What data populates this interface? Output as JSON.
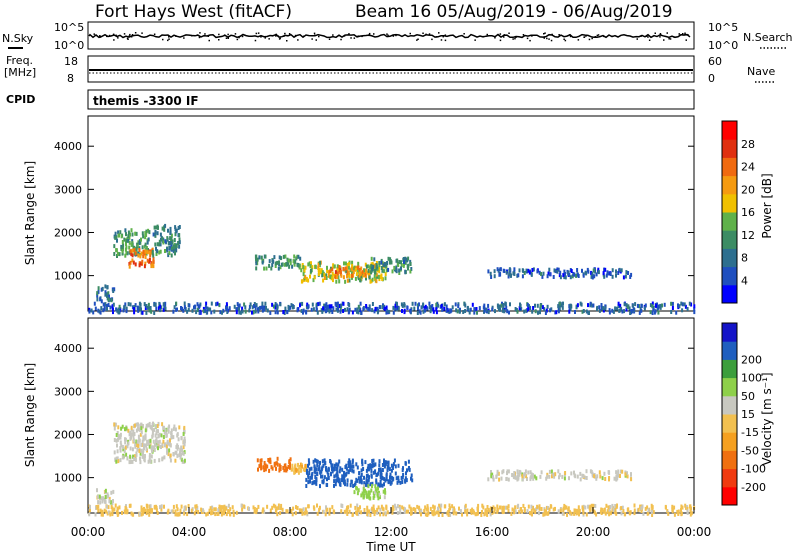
{
  "header": {
    "title": "Fort Hays West (fitACF)",
    "beam_date": "Beam 16 05/Aug/2019 - 06/Aug/2019"
  },
  "panel1": {
    "left_label": "N.Sky",
    "right_label": "N.Search",
    "left_ticks": [
      "10^5",
      "10^0"
    ],
    "right_ticks": [
      "10^5",
      "10^0"
    ]
  },
  "panel2": {
    "left_label_line1": "Freq.",
    "left_label_line2": "[MHz]",
    "right_label": "Nave",
    "left_ticks": [
      "18",
      "8"
    ],
    "right_ticks": [
      "60",
      "0"
    ]
  },
  "cpid": {
    "label": "CPID",
    "value": "themis -3300 IF"
  },
  "colors": {
    "power": [
      "#0000ff",
      "#1f4fbf",
      "#2d6f8f",
      "#3c8c64",
      "#5fb14a",
      "#f0c000",
      "#f59a10",
      "#f06a10",
      "#e03010",
      "#ff0000"
    ],
    "velocity": [
      "#ff0000",
      "#f03a10",
      "#f07010",
      "#f5a020",
      "#f2c050",
      "#c8c8c0",
      "#8ed04a",
      "#3c9e3c",
      "#1f5fbf",
      "#1414c8"
    ]
  },
  "chart_data": [
    {
      "type": "heatmap",
      "name": "power",
      "xlabel": "",
      "ylabel": "Slant Range [km]",
      "ylim": [
        180,
        4700
      ],
      "yticks": [
        "1000",
        "2000",
        "3000",
        "4000"
      ],
      "colorbar_label": "Power [dB]",
      "colorbar_ticks": [
        "4",
        "8",
        "12",
        "16",
        "20",
        "24",
        "28"
      ],
      "colorbar_range": [
        0,
        32
      ],
      "regions": [
        {
          "t0": 1.0,
          "t1": 2.4,
          "r0": 1500,
          "r1": 2100,
          "v": 12
        },
        {
          "t0": 1.6,
          "t1": 2.6,
          "r0": 1250,
          "r1": 1650,
          "v": 24
        },
        {
          "t0": 2.5,
          "t1": 3.6,
          "r0": 1500,
          "r1": 2200,
          "v": 10
        },
        {
          "t0": 6.6,
          "t1": 8.4,
          "r0": 1200,
          "r1": 1500,
          "v": 11
        },
        {
          "t0": 8.4,
          "t1": 11.8,
          "r0": 900,
          "r1": 1350,
          "v": 16
        },
        {
          "t0": 9.5,
          "t1": 11.0,
          "r0": 1000,
          "r1": 1250,
          "v": 22
        },
        {
          "t0": 11.0,
          "t1": 12.8,
          "r0": 1100,
          "r1": 1450,
          "v": 10
        },
        {
          "t0": 15.8,
          "t1": 21.5,
          "r0": 1000,
          "r1": 1200,
          "v": 6
        },
        {
          "t0": 0.3,
          "t1": 1.0,
          "r0": 450,
          "r1": 800,
          "v": 7
        },
        {
          "t0": 0.0,
          "t1": 24.0,
          "r0": 180,
          "r1": 400,
          "v": 6
        }
      ]
    },
    {
      "type": "heatmap",
      "name": "velocity",
      "xlabel": "Time UT",
      "ylabel": "Slant Range [km]",
      "ylim": [
        180,
        4700
      ],
      "yticks": [
        "1000",
        "2000",
        "3000",
        "4000"
      ],
      "xticks": [
        "00:00",
        "04:00",
        "08:00",
        "12:00",
        "16:00",
        "20:00",
        "00:00"
      ],
      "xlim_hours": [
        0,
        24
      ],
      "colorbar_label": "Velocity [m s⁻¹]",
      "colorbar_ticks": [
        "-200",
        "-100",
        "-50",
        "-15",
        "15",
        "50",
        "100",
        "200"
      ],
      "regions": [
        {
          "t0": 1.0,
          "t1": 3.8,
          "r0": 1400,
          "r1": 2300,
          "v": 0
        },
        {
          "t0": 0.3,
          "t1": 1.0,
          "r0": 450,
          "r1": 800,
          "v": 0
        },
        {
          "t0": 6.6,
          "t1": 8.0,
          "r0": 1200,
          "r1": 1500,
          "v": -130
        },
        {
          "t0": 8.0,
          "t1": 8.6,
          "r0": 1150,
          "r1": 1350,
          "v": -40
        },
        {
          "t0": 8.6,
          "t1": 12.8,
          "r0": 850,
          "r1": 1450,
          "v": 180
        },
        {
          "t0": 10.5,
          "t1": 11.8,
          "r0": 550,
          "r1": 850,
          "v": 30
        },
        {
          "t0": 15.8,
          "t1": 21.5,
          "r0": 1000,
          "r1": 1200,
          "v": 0
        },
        {
          "t0": 0.0,
          "t1": 24.0,
          "r0": 180,
          "r1": 400,
          "v": -30
        }
      ]
    }
  ]
}
